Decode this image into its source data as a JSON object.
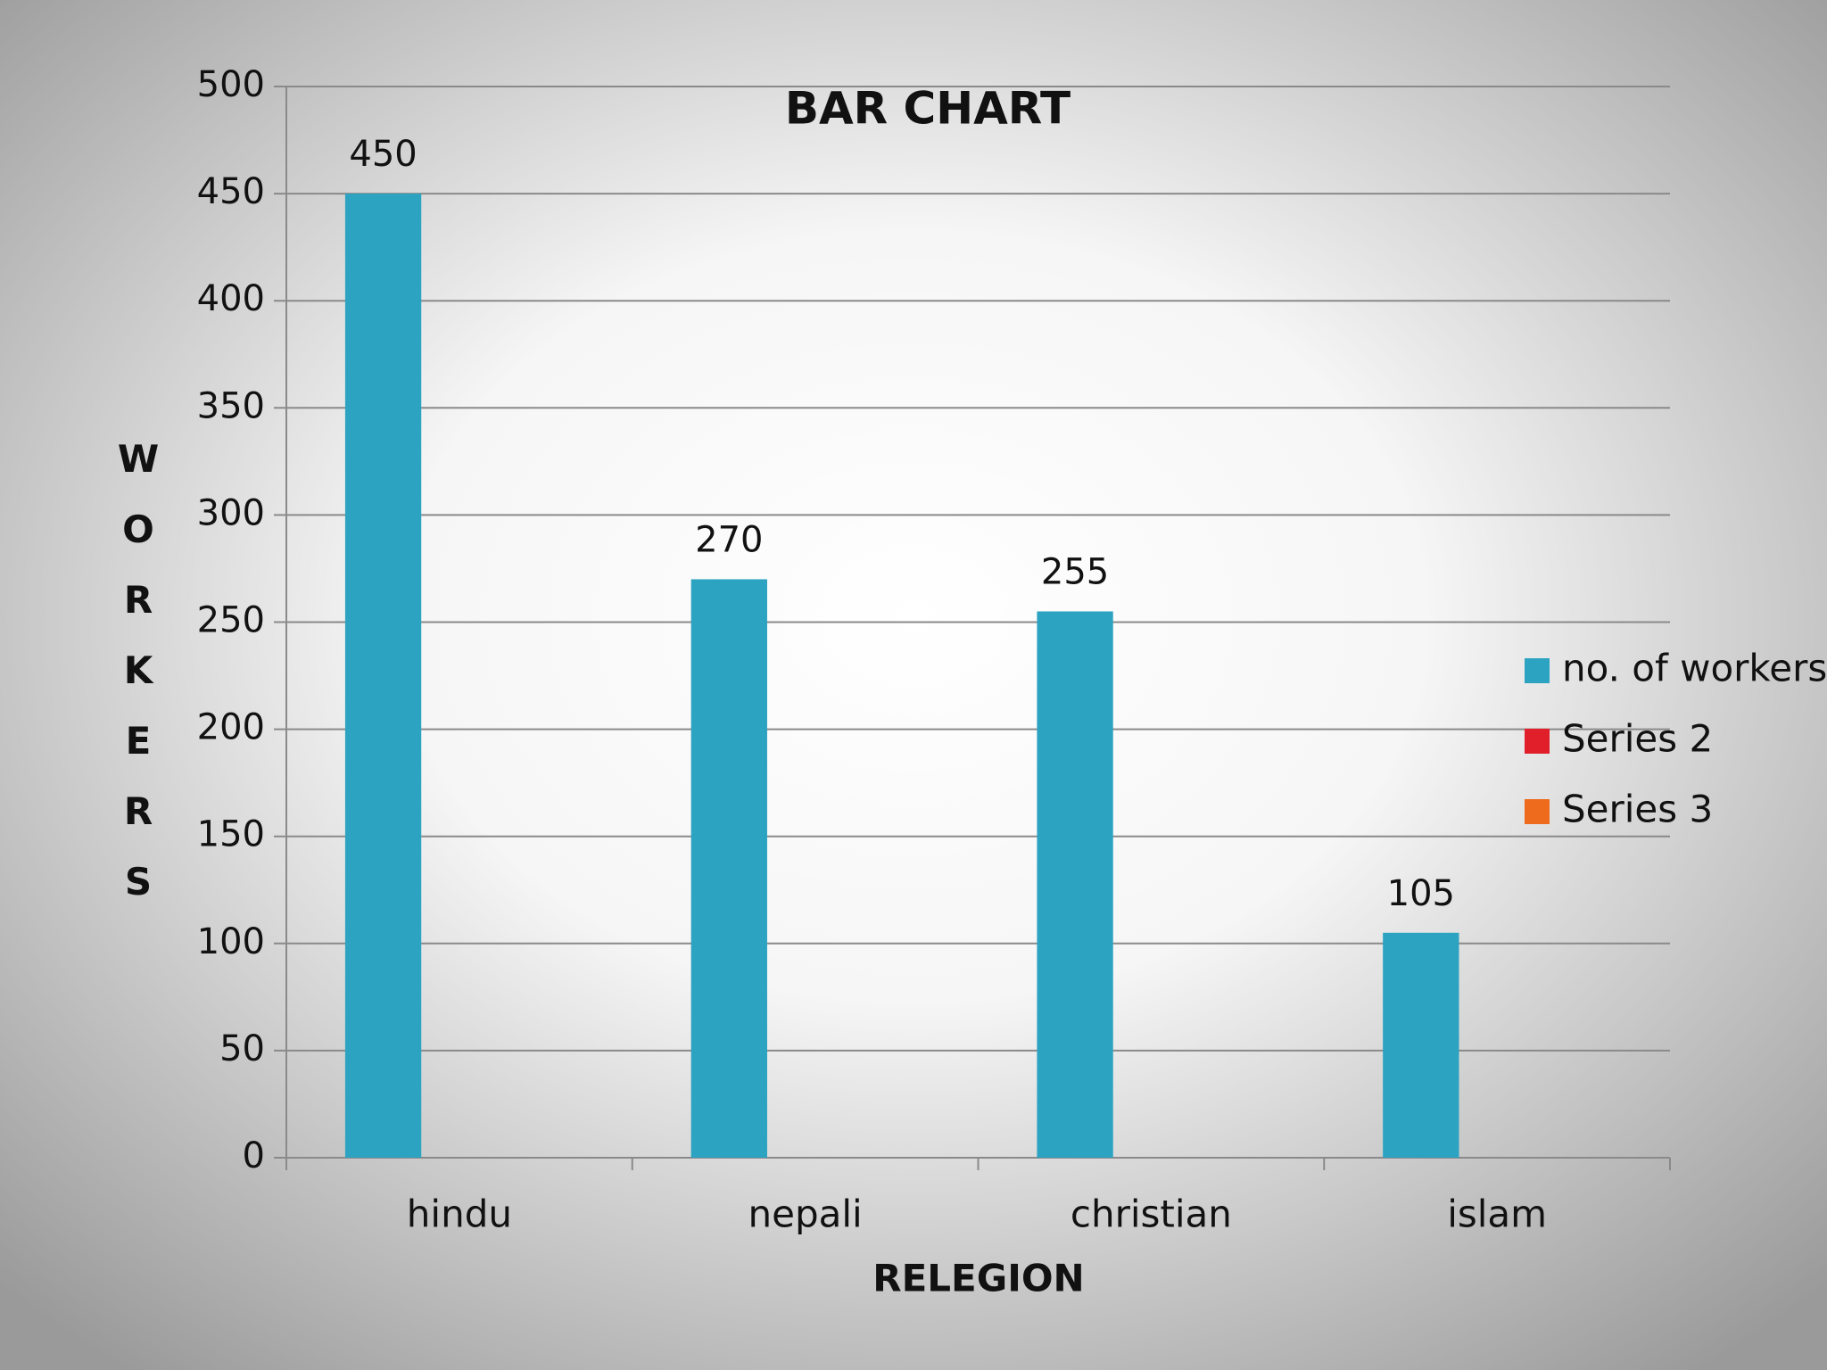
{
  "chart_data": {
    "type": "bar",
    "title": "BAR CHART",
    "x_label": "RELEGION",
    "y_label": "WORKERS",
    "categories": [
      "hindu",
      "nepali",
      "christian",
      "islam"
    ],
    "series": [
      {
        "name": "no. of workers",
        "color": "#2ca3c1",
        "values": [
          450,
          270,
          255,
          105
        ]
      },
      {
        "name": "Series 2",
        "color": "#e01f2b",
        "values": [
          null,
          null,
          null,
          null
        ]
      },
      {
        "name": "Series 3",
        "color": "#ee6a1d",
        "values": [
          null,
          null,
          null,
          null
        ]
      }
    ],
    "ylim": [
      0,
      500
    ],
    "yticks": [
      0,
      50,
      100,
      150,
      200,
      250,
      300,
      350,
      400,
      450,
      500
    ],
    "grid": true,
    "legend": "right"
  }
}
